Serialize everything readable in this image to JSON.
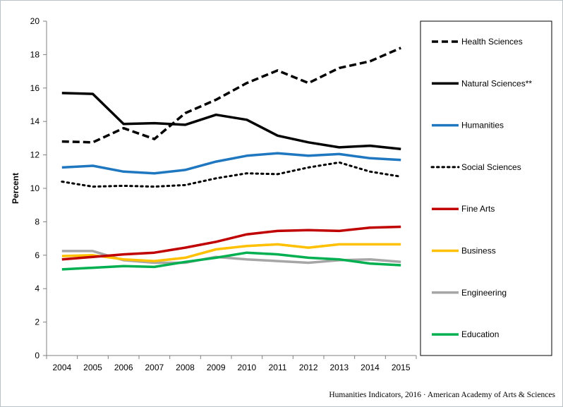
{
  "chart_data": {
    "type": "line",
    "ylabel": "Percent",
    "xlabel": "",
    "ylim": [
      0,
      20
    ],
    "yticks": [
      0,
      2,
      4,
      6,
      8,
      10,
      12,
      14,
      16,
      18,
      20
    ],
    "categories": [
      "2004",
      "2005",
      "2006",
      "2007",
      "2008",
      "2009",
      "2010",
      "2011",
      "2012",
      "2013",
      "2014",
      "2015"
    ],
    "grid": false,
    "legend_position": "right",
    "series": [
      {
        "name": "Health Sciences",
        "color": "#000000",
        "style": "dashed",
        "values": [
          12.8,
          12.75,
          13.6,
          12.95,
          14.5,
          15.3,
          16.3,
          17.05,
          16.3,
          17.2,
          17.6,
          18.4
        ]
      },
      {
        "name": "Natural Sciences**",
        "color": "#000000",
        "style": "solid",
        "values": [
          15.7,
          15.65,
          13.85,
          13.9,
          13.8,
          14.4,
          14.1,
          13.15,
          12.75,
          12.45,
          12.55,
          12.35
        ]
      },
      {
        "name": "Humanities",
        "color": "#1f77c0",
        "style": "solid",
        "values": [
          11.25,
          11.35,
          11.0,
          10.9,
          11.1,
          11.6,
          11.95,
          12.1,
          11.95,
          12.05,
          11.8,
          11.7
        ]
      },
      {
        "name": "Social Sciences",
        "color": "#000000",
        "style": "dotted",
        "values": [
          10.4,
          10.1,
          10.15,
          10.1,
          10.2,
          10.6,
          10.9,
          10.85,
          11.25,
          11.55,
          11.0,
          10.7
        ]
      },
      {
        "name": "Fine Arts",
        "color": "#c00000",
        "style": "solid",
        "values": [
          5.75,
          5.9,
          6.05,
          6.15,
          6.45,
          6.8,
          7.25,
          7.45,
          7.5,
          7.45,
          7.65,
          7.7
        ]
      },
      {
        "name": "Business",
        "color": "#ffc000",
        "style": "solid",
        "values": [
          5.95,
          6.0,
          5.75,
          5.65,
          5.85,
          6.35,
          6.55,
          6.65,
          6.45,
          6.65,
          6.65,
          6.65
        ]
      },
      {
        "name": "Engineering",
        "color": "#a6a6a6",
        "style": "solid",
        "values": [
          6.25,
          6.25,
          5.7,
          5.55,
          5.55,
          5.9,
          5.75,
          5.65,
          5.55,
          5.7,
          5.75,
          5.6
        ]
      },
      {
        "name": "Education",
        "color": "#00b050",
        "style": "solid",
        "values": [
          5.15,
          5.25,
          5.35,
          5.3,
          5.6,
          5.85,
          6.15,
          6.05,
          5.85,
          5.75,
          5.5,
          5.4
        ]
      }
    ]
  },
  "source": "Humanities  Indicators, 2016 · American Academy of Arts & Sciences"
}
